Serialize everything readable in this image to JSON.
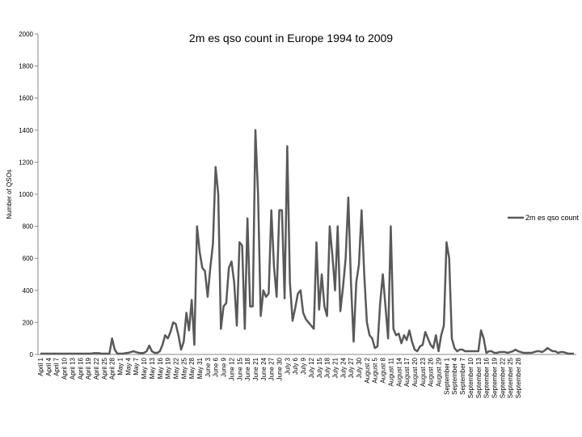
{
  "chart_data": {
    "type": "line",
    "title": "2m es qso count in Europe 1994 to 2009",
    "ylabel": "Number of QSOs",
    "xlabel": "",
    "ylim": [
      0,
      2000
    ],
    "yticks": [
      0,
      200,
      400,
      600,
      800,
      1000,
      1200,
      1400,
      1600,
      1800,
      2000
    ],
    "legend": "right",
    "grid": false,
    "line_color": "#595959",
    "x_start": "April 1",
    "x_end": "September 30",
    "x_tick_labels": [
      "April 1",
      "April 4",
      "April 7",
      "April 10",
      "April 13",
      "April 16",
      "April 19",
      "April 22",
      "April 25",
      "April 28",
      "May 1",
      "May 4",
      "May 7",
      "May 10",
      "May 13",
      "May 16",
      "May 19",
      "May 22",
      "May 25",
      "May 28",
      "May 31",
      "June 3",
      "June 6",
      "June 9",
      "June 12",
      "June 15",
      "June 18",
      "June 21",
      "June 24",
      "June 27",
      "June 30",
      "July 3",
      "July 6",
      "July 9",
      "July 12",
      "July 15",
      "July 18",
      "July 21",
      "July 24",
      "July 27",
      "July 30",
      "August 2",
      "August 5",
      "August 8",
      "August 11",
      "August 14",
      "August 17",
      "August 20",
      "August 23",
      "August 26",
      "August 29",
      "September 1",
      "September 4",
      "September 7",
      "September 10",
      "September 13",
      "September 16",
      "September 19",
      "September 22",
      "September 25",
      "September 28"
    ],
    "series": [
      {
        "name": "2m es qso count",
        "values": [
          5,
          5,
          5,
          5,
          5,
          5,
          5,
          5,
          5,
          5,
          5,
          5,
          5,
          5,
          5,
          5,
          5,
          5,
          5,
          5,
          8,
          8,
          8,
          5,
          5,
          5,
          5,
          100,
          30,
          5,
          5,
          5,
          8,
          10,
          15,
          20,
          15,
          10,
          8,
          10,
          20,
          55,
          20,
          10,
          10,
          20,
          60,
          120,
          100,
          140,
          200,
          190,
          120,
          30,
          80,
          260,
          150,
          340,
          60,
          800,
          640,
          540,
          520,
          360,
          540,
          690,
          1170,
          1000,
          160,
          300,
          320,
          540,
          580,
          450,
          180,
          700,
          680,
          160,
          850,
          300,
          300,
          1400,
          1000,
          240,
          400,
          360,
          380,
          900,
          550,
          360,
          900,
          900,
          350,
          1300,
          450,
          210,
          290,
          380,
          400,
          260,
          220,
          200,
          180,
          160,
          700,
          280,
          500,
          300,
          240,
          800,
          620,
          400,
          800,
          270,
          420,
          600,
          980,
          450,
          80,
          450,
          560,
          900,
          500,
          200,
          120,
          100,
          40,
          50,
          320,
          500,
          300,
          100,
          800,
          160,
          120,
          130,
          70,
          120,
          90,
          150,
          80,
          30,
          20,
          50,
          60,
          140,
          100,
          60,
          40,
          120,
          20,
          120,
          180,
          700,
          600,
          100,
          40,
          20,
          30,
          30,
          20,
          20,
          20,
          20,
          20,
          20,
          150,
          100,
          10,
          20,
          20,
          10,
          10,
          15,
          15,
          15,
          10,
          15,
          20,
          30,
          20,
          15,
          10,
          10,
          10,
          10,
          15,
          20,
          20,
          15,
          25,
          40,
          30,
          20,
          20,
          10,
          15,
          15,
          10,
          5,
          5,
          5
        ]
      }
    ]
  }
}
